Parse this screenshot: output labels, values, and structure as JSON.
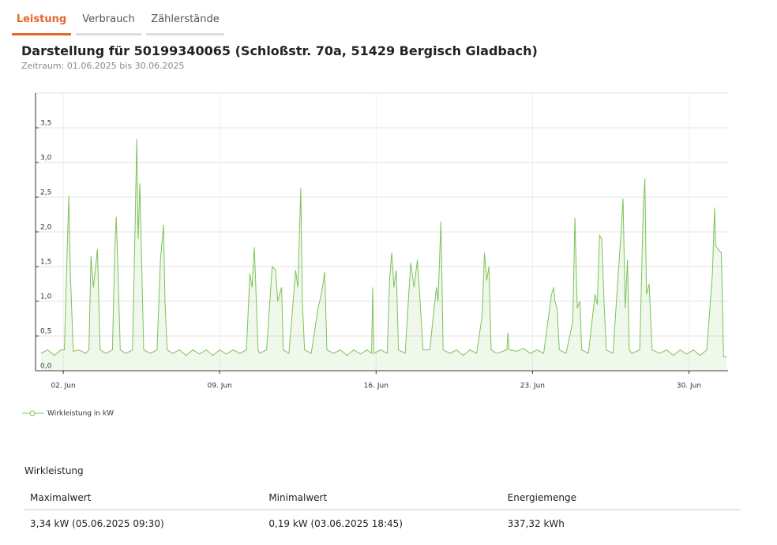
{
  "tabs": [
    "Leistung",
    "Verbrauch",
    "Zählerstände"
  ],
  "header": {
    "title": "Darstellung für 50199340065 (Schloßstr. 70a, 51429 Bergisch Gladbach)",
    "subtitle": "Zeitraum: 01.06.2025 bis 30.06.2025"
  },
  "chart_data": {
    "type": "line",
    "grid": true,
    "xlim": [
      0.76,
      31.75
    ],
    "ylim": [
      0,
      4
    ],
    "xticks": [
      {
        "value": 2,
        "label": "02. Jun"
      },
      {
        "value": 9,
        "label": "09. Jun"
      },
      {
        "value": 16,
        "label": "16. Jun"
      },
      {
        "value": 23,
        "label": "23. Jun"
      },
      {
        "value": 30,
        "label": "30. Jun"
      }
    ],
    "yticks": [
      {
        "value": 0,
        "label": "0,0"
      },
      {
        "value": 0.5,
        "label": "0,5"
      },
      {
        "value": 1,
        "label": "1,0"
      },
      {
        "value": 1.5,
        "label": "1,5"
      },
      {
        "value": 2,
        "label": "2,0"
      },
      {
        "value": 2.5,
        "label": "2,5"
      },
      {
        "value": 3,
        "label": "3,0"
      },
      {
        "value": 3.5,
        "label": "3,5"
      }
    ],
    "series": [
      {
        "name": "Wirkleistung in kW",
        "color": "#7cc35a",
        "x": [
          1.0,
          1.3,
          1.6,
          1.9,
          2.05,
          2.18,
          2.25,
          2.32,
          2.45,
          2.7,
          3.0,
          3.15,
          3.24,
          3.35,
          3.53,
          3.65,
          3.9,
          4.2,
          4.3,
          4.37,
          4.45,
          4.55,
          4.8,
          5.1,
          5.2,
          5.29,
          5.35,
          5.43,
          5.5,
          5.6,
          5.9,
          6.2,
          6.35,
          6.49,
          6.55,
          6.65,
          6.9,
          7.2,
          7.5,
          7.8,
          8.1,
          8.4,
          8.7,
          9.0,
          9.3,
          9.6,
          9.9,
          10.2,
          10.35,
          10.45,
          10.55,
          10.72,
          10.8,
          11.1,
          11.35,
          11.5,
          11.6,
          11.77,
          11.85,
          12.1,
          12.4,
          12.5,
          12.63,
          12.7,
          12.8,
          13.1,
          13.4,
          13.55,
          13.7,
          13.8,
          14.1,
          14.4,
          14.7,
          15.0,
          15.3,
          15.6,
          15.8,
          15.85,
          15.9,
          16.2,
          16.5,
          16.6,
          16.7,
          16.8,
          16.9,
          17.0,
          17.3,
          17.55,
          17.7,
          17.85,
          17.97,
          18.1,
          18.4,
          18.7,
          18.77,
          18.9,
          19.0,
          19.3,
          19.6,
          19.9,
          20.2,
          20.5,
          20.75,
          20.85,
          20.95,
          21.05,
          21.15,
          21.4,
          21.85,
          21.9,
          21.95,
          22.3,
          22.6,
          22.9,
          23.2,
          23.5,
          23.85,
          23.95,
          24.0,
          24.1,
          24.2,
          24.5,
          24.8,
          24.9,
          25.0,
          25.12,
          25.2,
          25.5,
          25.8,
          25.9,
          26.0,
          26.1,
          26.2,
          26.3,
          26.6,
          26.95,
          27.05,
          27.15,
          27.25,
          27.33,
          27.45,
          27.8,
          27.95,
          28.03,
          28.1,
          28.22,
          28.35,
          28.7,
          29.0,
          29.3,
          29.6,
          29.9,
          30.2,
          30.5,
          30.8,
          31.05,
          31.15,
          31.2,
          31.3,
          31.45,
          31.55,
          31.7
        ],
        "values": [
          0.25,
          0.3,
          0.22,
          0.3,
          0.3,
          1.8,
          2.52,
          1.4,
          0.28,
          0.3,
          0.25,
          0.3,
          1.65,
          1.2,
          1.75,
          0.3,
          0.25,
          0.3,
          1.7,
          2.22,
          1.45,
          0.3,
          0.25,
          0.3,
          1.8,
          3.34,
          1.9,
          2.7,
          1.7,
          0.3,
          0.25,
          0.3,
          1.6,
          2.1,
          1.0,
          0.3,
          0.25,
          0.3,
          0.22,
          0.3,
          0.24,
          0.3,
          0.22,
          0.3,
          0.24,
          0.3,
          0.25,
          0.3,
          1.4,
          1.2,
          1.78,
          0.3,
          0.25,
          0.3,
          1.5,
          1.45,
          1.0,
          1.2,
          0.3,
          0.25,
          1.45,
          1.2,
          2.63,
          1.0,
          0.3,
          0.25,
          0.9,
          1.1,
          1.42,
          0.3,
          0.25,
          0.3,
          0.22,
          0.3,
          0.24,
          0.3,
          0.25,
          1.2,
          0.25,
          0.3,
          0.25,
          1.3,
          1.7,
          1.2,
          1.45,
          0.3,
          0.25,
          1.55,
          1.2,
          1.6,
          1.0,
          0.3,
          0.3,
          1.2,
          1.0,
          2.15,
          0.3,
          0.25,
          0.3,
          0.22,
          0.3,
          0.25,
          0.8,
          1.7,
          1.3,
          1.5,
          0.3,
          0.25,
          0.3,
          0.55,
          0.3,
          0.28,
          0.32,
          0.25,
          0.3,
          0.25,
          1.1,
          1.2,
          1.0,
          0.9,
          0.3,
          0.25,
          0.7,
          2.2,
          0.9,
          1.0,
          0.3,
          0.25,
          1.1,
          0.95,
          1.95,
          1.9,
          1.0,
          0.3,
          0.25,
          1.95,
          2.48,
          0.9,
          1.6,
          0.3,
          0.25,
          0.3,
          2.3,
          2.77,
          1.1,
          1.25,
          0.3,
          0.25,
          0.3,
          0.22,
          0.3,
          0.24,
          0.3,
          0.22,
          0.3,
          1.4,
          2.35,
          1.8,
          1.75,
          1.7,
          0.2,
          0.2
        ]
      }
    ]
  },
  "table": {
    "title": "Wirkleistung",
    "header": [
      "Maximalwert",
      "Minimalwert",
      "Energiemenge"
    ],
    "rows": [
      [
        "3,34 kW (05.06.2025 09:30)",
        "0,19 kW (03.06.2025 18:45)",
        "337,32 kWh"
      ]
    ]
  }
}
